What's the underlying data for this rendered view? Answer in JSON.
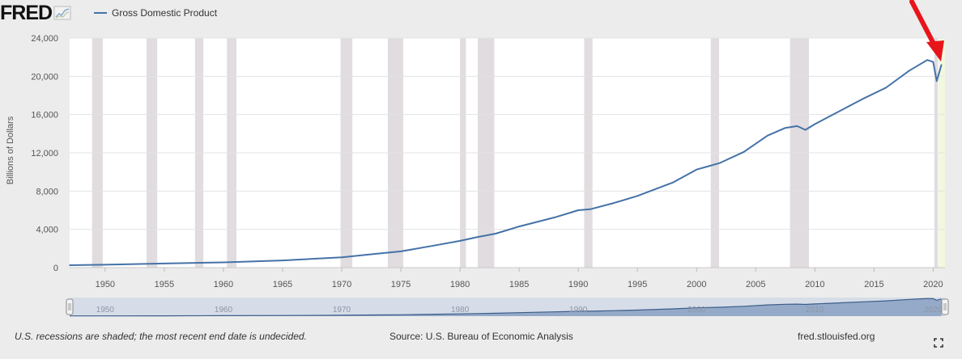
{
  "brand": {
    "logo_text": "FRED"
  },
  "chart_data": {
    "type": "line",
    "title": "",
    "xlabel": "",
    "ylabel": "Billions of Dollars",
    "ylim": [
      0,
      24000
    ],
    "xlim": [
      1947,
      2021
    ],
    "yticks": [
      0,
      4000,
      8000,
      12000,
      16000,
      20000,
      24000
    ],
    "ytick_labels": [
      "0",
      "4,000",
      "8,000",
      "12,000",
      "16,000",
      "20,000",
      "24,000"
    ],
    "xticks": [
      1950,
      1955,
      1960,
      1965,
      1970,
      1975,
      1980,
      1985,
      1990,
      1995,
      2000,
      2005,
      2010,
      2015,
      2020
    ],
    "xtick_labels": [
      "1950",
      "1955",
      "1960",
      "1965",
      "1970",
      "1975",
      "1980",
      "1985",
      "1990",
      "1995",
      "2000",
      "2005",
      "2010",
      "2015",
      "2020"
    ],
    "grid": true,
    "legend_position": "top-left",
    "series": [
      {
        "name": "Gross Domestic Product",
        "color": "#4572a7",
        "x": [
          1947,
          1950,
          1955,
          1960,
          1965,
          1970,
          1973,
          1975,
          1978,
          1980,
          1981.5,
          1983,
          1985,
          1988,
          1990,
          1991,
          1993,
          1995,
          1998,
          2000,
          2001,
          2002,
          2004,
          2006,
          2007.5,
          2008.5,
          2009.2,
          2010,
          2012,
          2014,
          2016,
          2018,
          2019.5,
          2020.0,
          2020.3,
          2020.7
        ],
        "values": [
          250,
          300,
          430,
          550,
          750,
          1080,
          1450,
          1700,
          2350,
          2800,
          3200,
          3550,
          4300,
          5250,
          6000,
          6100,
          6750,
          7500,
          8900,
          10250,
          10600,
          10950,
          12100,
          13800,
          14600,
          14800,
          14400,
          15000,
          16300,
          17600,
          18800,
          20600,
          21700,
          21500,
          19500,
          21200
        ]
      }
    ],
    "recessions": [
      [
        1948.9,
        1949.8
      ],
      [
        1953.5,
        1954.4
      ],
      [
        1957.6,
        1958.3
      ],
      [
        1960.3,
        1961.1
      ],
      [
        1969.9,
        1970.9
      ],
      [
        1973.9,
        1975.2
      ],
      [
        1980.0,
        1980.5
      ],
      [
        1981.5,
        1982.9
      ],
      [
        1990.5,
        1991.2
      ],
      [
        2001.2,
        2001.9
      ],
      [
        2007.9,
        2009.5
      ],
      [
        2020.1,
        2020.4
      ]
    ],
    "range_selector_labels": [
      "1950",
      "1960",
      "1970",
      "1980",
      "1990",
      "2000",
      "2010",
      "2020"
    ]
  },
  "footer": {
    "note": "U.S. recessions are shaded; the most recent end date is undecided.",
    "source": "Source: U.S. Bureau of Economic Analysis",
    "site": "fred.stlouisfed.org"
  },
  "colors": {
    "line": "#4572a7",
    "recession": "#e0dcdf",
    "arrow": "#e8141b",
    "navigator_fill": "#8ea4c4"
  }
}
